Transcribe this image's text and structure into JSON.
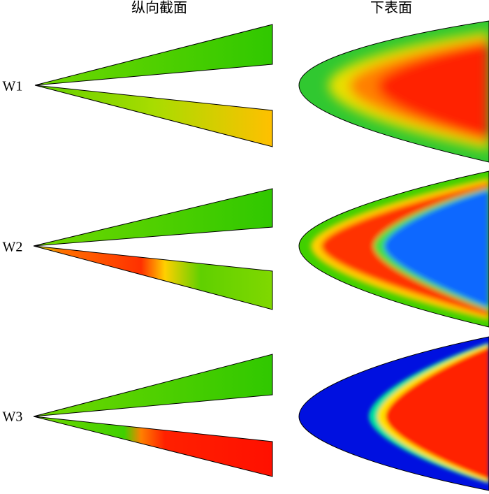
{
  "columns": [
    "纵向截面",
    "下表面"
  ],
  "rows": [
    "W1",
    "W2",
    "W3"
  ]
}
